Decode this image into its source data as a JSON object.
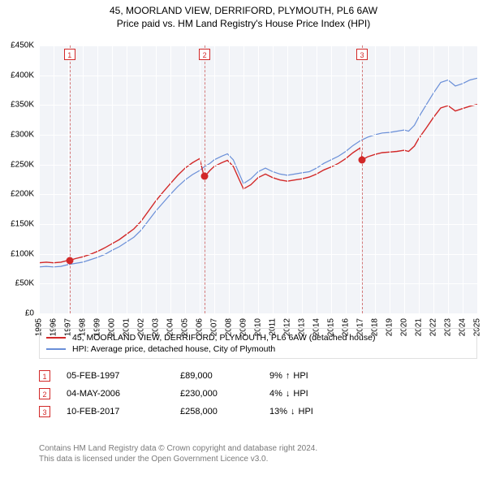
{
  "title_line1": "45, MOORLAND VIEW, DERRIFORD, PLYMOUTH, PL6 6AW",
  "title_line2": "Price paid vs. HM Land Registry's House Price Index (HPI)",
  "chart": {
    "type": "line",
    "background_color": "#f2f4f8",
    "grid_color": "#ffffff",
    "x": {
      "min": 1995,
      "max": 2025,
      "tick_step": 1,
      "ticks": [
        1995,
        1996,
        1997,
        1998,
        1999,
        2000,
        2001,
        2002,
        2003,
        2004,
        2005,
        2006,
        2007,
        2008,
        2009,
        2010,
        2011,
        2012,
        2013,
        2014,
        2015,
        2016,
        2017,
        2018,
        2019,
        2020,
        2021,
        2022,
        2023,
        2024,
        2025
      ]
    },
    "y": {
      "min": 0,
      "max": 450000,
      "tick_step": 50000,
      "tick_labels": [
        "£0",
        "£50K",
        "£100K",
        "£150K",
        "£200K",
        "£250K",
        "£300K",
        "£350K",
        "£400K",
        "£450K"
      ]
    },
    "series": [
      {
        "id": "hpi",
        "color": "#6a8fd8",
        "width": 1.2,
        "label": "HPI: Average price, detached house, City of Plymouth",
        "points": [
          [
            1995.0,
            78000
          ],
          [
            1995.5,
            79000
          ],
          [
            1996.0,
            78000
          ],
          [
            1996.5,
            79000
          ],
          [
            1997.0,
            82000
          ],
          [
            1997.5,
            84000
          ],
          [
            1998.0,
            86000
          ],
          [
            1998.5,
            90000
          ],
          [
            1999.0,
            94000
          ],
          [
            1999.5,
            99000
          ],
          [
            2000.0,
            106000
          ],
          [
            2000.5,
            112000
          ],
          [
            2001.0,
            120000
          ],
          [
            2001.5,
            128000
          ],
          [
            2002.0,
            140000
          ],
          [
            2002.5,
            156000
          ],
          [
            2003.0,
            172000
          ],
          [
            2003.5,
            186000
          ],
          [
            2004.0,
            200000
          ],
          [
            2004.5,
            213000
          ],
          [
            2005.0,
            224000
          ],
          [
            2005.5,
            233000
          ],
          [
            2006.0,
            240000
          ],
          [
            2006.3,
            246000
          ],
          [
            2006.7,
            252000
          ],
          [
            2007.0,
            258000
          ],
          [
            2007.5,
            264000
          ],
          [
            2007.9,
            268000
          ],
          [
            2008.3,
            258000
          ],
          [
            2008.7,
            235000
          ],
          [
            2009.0,
            218000
          ],
          [
            2009.5,
            226000
          ],
          [
            2010.0,
            238000
          ],
          [
            2010.5,
            244000
          ],
          [
            2011.0,
            238000
          ],
          [
            2011.5,
            234000
          ],
          [
            2012.0,
            232000
          ],
          [
            2012.5,
            234000
          ],
          [
            2013.0,
            236000
          ],
          [
            2013.5,
            238000
          ],
          [
            2014.0,
            244000
          ],
          [
            2014.5,
            252000
          ],
          [
            2015.0,
            258000
          ],
          [
            2015.5,
            264000
          ],
          [
            2016.0,
            272000
          ],
          [
            2016.5,
            282000
          ],
          [
            2017.0,
            290000
          ],
          [
            2017.5,
            296000
          ],
          [
            2018.0,
            300000
          ],
          [
            2018.5,
            303000
          ],
          [
            2019.0,
            304000
          ],
          [
            2019.5,
            306000
          ],
          [
            2020.0,
            308000
          ],
          [
            2020.3,
            306000
          ],
          [
            2020.7,
            316000
          ],
          [
            2021.0,
            330000
          ],
          [
            2021.5,
            350000
          ],
          [
            2022.0,
            370000
          ],
          [
            2022.5,
            388000
          ],
          [
            2023.0,
            392000
          ],
          [
            2023.5,
            382000
          ],
          [
            2024.0,
            386000
          ],
          [
            2024.5,
            392000
          ],
          [
            2025.0,
            395000
          ]
        ]
      },
      {
        "id": "property",
        "color": "#d22828",
        "width": 1.4,
        "label": "45, MOORLAND VIEW, DERRIFORD, PLYMOUTH, PL6 6AW (detached house)",
        "points": [
          [
            1995.0,
            85000
          ],
          [
            1995.5,
            86000
          ],
          [
            1996.0,
            85000
          ],
          [
            1996.5,
            86000
          ],
          [
            1997.0,
            89000
          ],
          [
            1997.1,
            89000
          ],
          [
            1997.5,
            92000
          ],
          [
            1998.0,
            95000
          ],
          [
            1998.5,
            99000
          ],
          [
            1999.0,
            104000
          ],
          [
            1999.5,
            110000
          ],
          [
            2000.0,
            117000
          ],
          [
            2000.5,
            124000
          ],
          [
            2001.0,
            133000
          ],
          [
            2001.5,
            142000
          ],
          [
            2002.0,
            155000
          ],
          [
            2002.5,
            172000
          ],
          [
            2003.0,
            189000
          ],
          [
            2003.5,
            204000
          ],
          [
            2004.0,
            218000
          ],
          [
            2004.5,
            232000
          ],
          [
            2005.0,
            244000
          ],
          [
            2005.5,
            253000
          ],
          [
            2006.0,
            260000
          ],
          [
            2006.3,
            230000
          ],
          [
            2006.35,
            230000
          ],
          [
            2006.7,
            240000
          ],
          [
            2007.0,
            247000
          ],
          [
            2007.5,
            253000
          ],
          [
            2007.9,
            257000
          ],
          [
            2008.3,
            247000
          ],
          [
            2008.7,
            225000
          ],
          [
            2009.0,
            209000
          ],
          [
            2009.5,
            216000
          ],
          [
            2010.0,
            228000
          ],
          [
            2010.5,
            234000
          ],
          [
            2011.0,
            228000
          ],
          [
            2011.5,
            224000
          ],
          [
            2012.0,
            222000
          ],
          [
            2012.5,
            224000
          ],
          [
            2013.0,
            226000
          ],
          [
            2013.5,
            229000
          ],
          [
            2014.0,
            234000
          ],
          [
            2014.5,
            241000
          ],
          [
            2015.0,
            246000
          ],
          [
            2015.5,
            252000
          ],
          [
            2016.0,
            260000
          ],
          [
            2016.5,
            270000
          ],
          [
            2017.0,
            278000
          ],
          [
            2017.1,
            258000
          ],
          [
            2017.12,
            258000
          ],
          [
            2017.5,
            263000
          ],
          [
            2018.0,
            267000
          ],
          [
            2018.5,
            270000
          ],
          [
            2019.0,
            271000
          ],
          [
            2019.5,
            272000
          ],
          [
            2020.0,
            274000
          ],
          [
            2020.3,
            272000
          ],
          [
            2020.7,
            281000
          ],
          [
            2021.0,
            294000
          ],
          [
            2021.5,
            311000
          ],
          [
            2022.0,
            329000
          ],
          [
            2022.5,
            345000
          ],
          [
            2023.0,
            349000
          ],
          [
            2023.5,
            340000
          ],
          [
            2024.0,
            344000
          ],
          [
            2024.5,
            348000
          ],
          [
            2025.0,
            351000
          ]
        ]
      }
    ],
    "sales": [
      {
        "n": "1",
        "x": 1997.1,
        "date": "05-FEB-1997",
        "price": "£89,000",
        "hpi_pct": "9%",
        "hpi_dir": "↑"
      },
      {
        "n": "2",
        "x": 2006.34,
        "date": "04-MAY-2006",
        "price": "£230,000",
        "hpi_pct": "4%",
        "hpi_dir": "↓"
      },
      {
        "n": "3",
        "x": 2017.11,
        "date": "10-FEB-2017",
        "price": "£258,000",
        "hpi_pct": "13%",
        "hpi_dir": "↓"
      }
    ],
    "sale_marker_color": "#d22828",
    "sale_badge_border": "#d22828",
    "sale_dashline_color": "#d47a7a"
  },
  "hpi_label_suffix": "HPI",
  "footer_line1": "Contains HM Land Registry data © Crown copyright and database right 2024.",
  "footer_line2": "This data is licensed under the Open Government Licence v3.0."
}
